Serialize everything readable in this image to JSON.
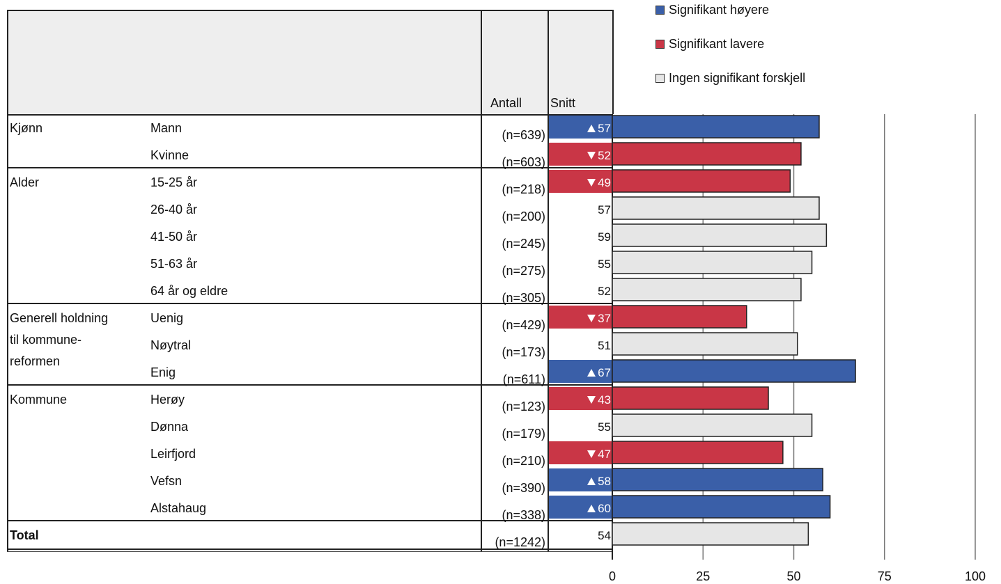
{
  "colors": {
    "higher": "#3a5fa8",
    "lower": "#c93646",
    "none": "#e6e6e6",
    "grid": "#777777"
  },
  "legend": {
    "items": [
      {
        "label": "Signifikant høyere",
        "color": "#3a5fa8"
      },
      {
        "label": "Signifikant lavere",
        "color": "#c93646"
      },
      {
        "label": "Ingen signifikant forskjell",
        "color": "#e6e6e6"
      }
    ]
  },
  "table": {
    "header_antall": "Antall",
    "header_snitt": "Snitt",
    "groups": [
      {
        "label": "Kjønn",
        "lines": [
          "Kjønn"
        ]
      },
      {
        "label": "Alder",
        "lines": [
          "Alder"
        ]
      },
      {
        "label": "Generell holdning til kommunereformen",
        "lines": [
          "Generell holdning",
          "til kommune-",
          "reformen"
        ]
      },
      {
        "label": "Kommune",
        "lines": [
          "Kommune"
        ]
      },
      {
        "label": "Total",
        "lines": [
          "Total"
        ]
      }
    ]
  },
  "chart_data": {
    "type": "bar",
    "orientation": "horizontal",
    "xlim": [
      0,
      100
    ],
    "xticks": [
      "0",
      "25",
      "50",
      "75",
      "100"
    ],
    "categories": [
      "Mann",
      "Kvinne",
      "15-25 år",
      "26-40 år",
      "41-50 år",
      "51-63 år",
      "64 år og eldre",
      "Uenig",
      "Nøytral",
      "Enig",
      "Herøy",
      "Dønna",
      "Leirfjord",
      "Vefsn",
      "Alstahaug",
      ""
    ],
    "rows": [
      {
        "group": "Kjønn",
        "label": "Mann",
        "n": "(n=639)",
        "value": 57,
        "sig": "higher"
      },
      {
        "group": "Kjønn",
        "label": "Kvinne",
        "n": "(n=603)",
        "value": 52,
        "sig": "lower"
      },
      {
        "group": "Alder",
        "label": "15-25 år",
        "n": "(n=218)",
        "value": 49,
        "sig": "lower"
      },
      {
        "group": "Alder",
        "label": "26-40 år",
        "n": "(n=200)",
        "value": 57,
        "sig": "none"
      },
      {
        "group": "Alder",
        "label": "41-50 år",
        "n": "(n=245)",
        "value": 59,
        "sig": "none"
      },
      {
        "group": "Alder",
        "label": "51-63 år",
        "n": "(n=275)",
        "value": 55,
        "sig": "none"
      },
      {
        "group": "Alder",
        "label": "64 år og eldre",
        "n": "(n=305)",
        "value": 52,
        "sig": "none"
      },
      {
        "group": "Generell holdning til kommunereformen",
        "label": "Uenig",
        "n": "(n=429)",
        "value": 37,
        "sig": "lower"
      },
      {
        "group": "Generell holdning til kommunereformen",
        "label": "Nøytral",
        "n": "(n=173)",
        "value": 51,
        "sig": "none"
      },
      {
        "group": "Generell holdning til kommunereformen",
        "label": "Enig",
        "n": "(n=611)",
        "value": 67,
        "sig": "higher"
      },
      {
        "group": "Kommune",
        "label": "Herøy",
        "n": "(n=123)",
        "value": 43,
        "sig": "lower"
      },
      {
        "group": "Kommune",
        "label": "Dønna",
        "n": "(n=179)",
        "value": 55,
        "sig": "none"
      },
      {
        "group": "Kommune",
        "label": "Leirfjord",
        "n": "(n=210)",
        "value": 47,
        "sig": "lower"
      },
      {
        "group": "Kommune",
        "label": "Vefsn",
        "n": "(n=390)",
        "value": 58,
        "sig": "higher"
      },
      {
        "group": "Kommune",
        "label": "Alstahaug",
        "n": "(n=338)",
        "value": 60,
        "sig": "higher"
      },
      {
        "group": "Total",
        "label": "",
        "n": "(n=1242)",
        "value": 54,
        "sig": "none"
      }
    ]
  }
}
